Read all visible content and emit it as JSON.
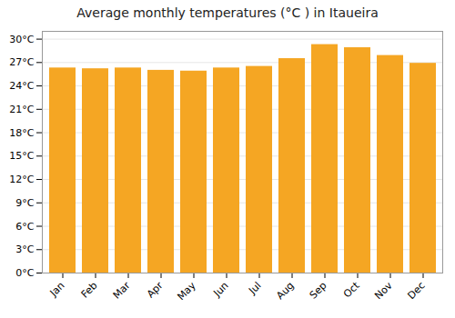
{
  "chart_data": {
    "type": "bar",
    "title": "Average monthly temperatures (°C ) in Itaueira",
    "categories": [
      "Jan",
      "Feb",
      "Mar",
      "Apr",
      "May",
      "Jun",
      "Jul",
      "Aug",
      "Sep",
      "Oct",
      "Nov",
      "Dec"
    ],
    "values": [
      26.3,
      26.2,
      26.3,
      26.0,
      25.9,
      26.3,
      26.5,
      27.5,
      29.3,
      28.9,
      27.9,
      26.9
    ],
    "color": "#F5A623",
    "ylim": [
      0,
      31
    ],
    "yticks": [
      {
        "value": 0,
        "label": "0°C"
      },
      {
        "value": 3,
        "label": "3°C"
      },
      {
        "value": 6,
        "label": "6°C"
      },
      {
        "value": 9,
        "label": "9°C"
      },
      {
        "value": 12,
        "label": "12°C"
      },
      {
        "value": 15,
        "label": "15°C"
      },
      {
        "value": 18,
        "label": "18°C"
      },
      {
        "value": 21,
        "label": "21°C"
      },
      {
        "value": 24,
        "label": "24°C"
      },
      {
        "value": 27,
        "label": "27°C"
      },
      {
        "value": 30,
        "label": "30°C"
      }
    ],
    "grid": true
  }
}
